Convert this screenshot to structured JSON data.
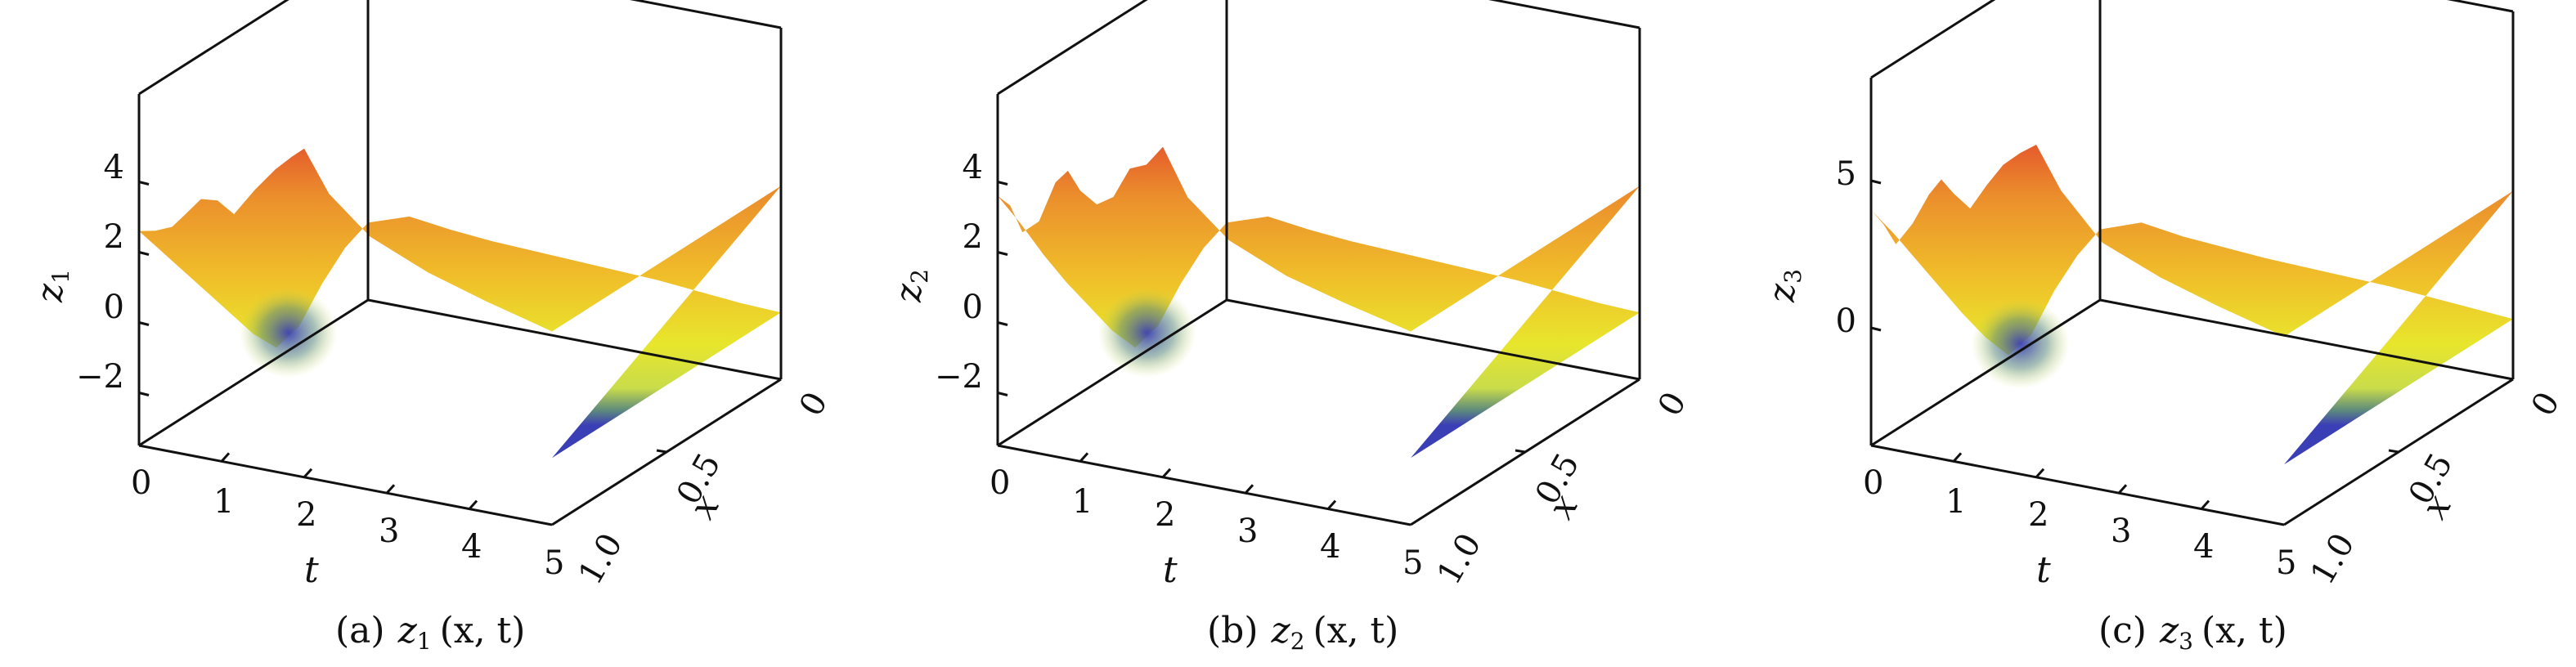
{
  "colors": {
    "surface_scale": [
      "#3b3fb5",
      "#5d8a7d",
      "#c9dc4a",
      "#e8e62c",
      "#f0bf2a",
      "#eb8f2c",
      "#e3452c",
      "#d72626"
    ],
    "axes": "#111111",
    "background": "#ffffff"
  },
  "chart_data": [
    {
      "type": "surface",
      "title_prefix": "(a)",
      "title_func": "z",
      "title_sub": "1",
      "title_args": "(x, t)",
      "zlabel": "z",
      "zlabel_sub": "1",
      "tlabel": "t",
      "xlabel": "x",
      "t_ticks": [
        "0",
        "1",
        "2",
        "3",
        "4",
        "5"
      ],
      "x_ticks": [
        "0",
        "0.5",
        "1.0"
      ],
      "z_ticks": [
        {
          "value": 4,
          "label": "4"
        },
        {
          "value": 2,
          "label": "2"
        },
        {
          "value": 0,
          "label": "0"
        },
        {
          "value": -2,
          "label": "−2"
        }
      ],
      "tlim": [
        0,
        5
      ],
      "xlim": [
        0,
        1
      ],
      "zlim": [
        -3.5,
        6.5
      ],
      "edge_x0": {
        "t": [
          0,
          0.2,
          0.4,
          0.55,
          0.75,
          0.95,
          1.15,
          1.4,
          1.65,
          1.85,
          2.0,
          2.3,
          2.8,
          3.5,
          4.2,
          5.0
        ],
        "z": [
          2.6,
          2.7,
          2.9,
          3.3,
          3.85,
          3.9,
          3.6,
          4.4,
          5.1,
          5.55,
          5.85,
          4.7,
          3.7,
          3.0,
          2.5,
          2.0
        ]
      },
      "edge_t0": {
        "x": [
          0,
          0.1,
          0.2,
          0.3,
          0.4,
          0.5,
          0.6,
          0.7,
          0.8,
          0.9,
          1.0
        ],
        "z": [
          2.6,
          1.6,
          0.6,
          -0.4,
          -1.4,
          -2.4,
          -3.2,
          -3.0,
          -2.2,
          -1.6,
          -1.3
        ]
      },
      "edge_x1": {
        "t": [
          0,
          0.5,
          1,
          1.5,
          2,
          2.5,
          3,
          3.5,
          4,
          4.5,
          5
        ],
        "z": [
          -1.3,
          -0.9,
          -1.05,
          -1.15,
          -1.2,
          -1.25,
          -1.3,
          -1.35,
          -1.45,
          -1.55,
          -1.6
        ]
      },
      "edge_t5": {
        "x": [
          0,
          0.5,
          1
        ],
        "z": [
          2.0,
          0.2,
          -1.6
        ]
      }
    },
    {
      "type": "surface",
      "title_prefix": "(b)",
      "title_func": "z",
      "title_sub": "2",
      "title_args": "(x, t)",
      "zlabel": "z",
      "zlabel_sub": "2",
      "tlabel": "t",
      "xlabel": "x",
      "t_ticks": [
        "0",
        "1",
        "2",
        "3",
        "4",
        "5"
      ],
      "x_ticks": [
        "0",
        "0.5",
        "1.0"
      ],
      "z_ticks": [
        {
          "value": 4,
          "label": "4"
        },
        {
          "value": 2,
          "label": "2"
        },
        {
          "value": 0,
          "label": "0"
        },
        {
          "value": -2,
          "label": "−2"
        }
      ],
      "tlim": [
        0,
        5
      ],
      "xlim": [
        0,
        1
      ],
      "zlim": [
        -3.5,
        6.5
      ],
      "edge_x0": {
        "t": [
          0,
          0.15,
          0.3,
          0.5,
          0.7,
          0.85,
          1.0,
          1.2,
          1.4,
          1.6,
          1.8,
          2.0,
          2.3,
          2.8,
          3.5,
          4.2,
          5.0
        ],
        "z": [
          3.6,
          3.4,
          2.7,
          3.1,
          4.3,
          4.7,
          4.2,
          3.9,
          4.2,
          5.1,
          5.3,
          5.9,
          4.6,
          3.6,
          2.9,
          2.45,
          2.0
        ]
      },
      "edge_t0": {
        "x": [
          0,
          0.1,
          0.2,
          0.3,
          0.4,
          0.5,
          0.6,
          0.7,
          0.8,
          0.9,
          1.0
        ],
        "z": [
          3.6,
          2.4,
          1.1,
          -0.1,
          -1.2,
          -2.3,
          -3.2,
          -3.0,
          -2.2,
          -1.6,
          -1.3
        ]
      },
      "edge_x1": {
        "t": [
          0,
          0.5,
          1,
          1.5,
          2,
          2.5,
          3,
          3.5,
          4,
          4.5,
          5
        ],
        "z": [
          -1.3,
          -0.9,
          -1.05,
          -1.15,
          -1.2,
          -1.25,
          -1.3,
          -1.35,
          -1.45,
          -1.55,
          -1.6
        ]
      },
      "edge_t5": {
        "x": [
          0,
          0.5,
          1
        ],
        "z": [
          2.0,
          0.2,
          -1.6
        ]
      }
    },
    {
      "type": "surface",
      "title_prefix": "(c)",
      "title_func": "z",
      "title_sub": "3",
      "title_args": "(x, t)",
      "zlabel": "z",
      "zlabel_sub": "3",
      "tlabel": "t",
      "xlabel": "x",
      "t_ticks": [
        "0",
        "1",
        "2",
        "3",
        "4",
        "5"
      ],
      "x_ticks": [
        "0",
        "0.5",
        "1.0"
      ],
      "z_ticks": [
        {
          "value": 5,
          "label": "5"
        },
        {
          "value": 0,
          "label": "0"
        }
      ],
      "tlim": [
        0,
        5
      ],
      "xlim": [
        0,
        1
      ],
      "zlim": [
        -4,
        8.5
      ],
      "edge_x0": {
        "t": [
          0,
          0.15,
          0.3,
          0.5,
          0.7,
          0.85,
          1.0,
          1.2,
          1.4,
          1.6,
          1.8,
          2.0,
          2.3,
          2.8,
          3.5,
          4.2,
          5.0
        ],
        "z": [
          4.0,
          3.6,
          3.0,
          3.8,
          4.9,
          5.5,
          5.1,
          4.7,
          5.6,
          6.4,
          6.9,
          7.3,
          5.9,
          4.4,
          3.6,
          3.0,
          2.4
        ]
      },
      "edge_t0": {
        "x": [
          0,
          0.1,
          0.2,
          0.3,
          0.4,
          0.5,
          0.6,
          0.7,
          0.8,
          0.9,
          1.0
        ],
        "z": [
          4.0,
          2.7,
          1.3,
          -0.1,
          -1.5,
          -2.8,
          -3.9,
          -3.7,
          -2.7,
          -2.0,
          -1.6
        ]
      },
      "edge_x1": {
        "t": [
          0,
          0.5,
          1,
          1.5,
          2,
          2.5,
          3,
          3.5,
          4,
          4.5,
          5
        ],
        "z": [
          -1.6,
          -1.1,
          -1.3,
          -1.4,
          -1.5,
          -1.55,
          -1.6,
          -1.65,
          -1.75,
          -1.85,
          -1.95
        ]
      },
      "edge_t5": {
        "x": [
          0,
          0.5,
          1
        ],
        "z": [
          2.4,
          0.2,
          -1.95
        ]
      }
    }
  ]
}
